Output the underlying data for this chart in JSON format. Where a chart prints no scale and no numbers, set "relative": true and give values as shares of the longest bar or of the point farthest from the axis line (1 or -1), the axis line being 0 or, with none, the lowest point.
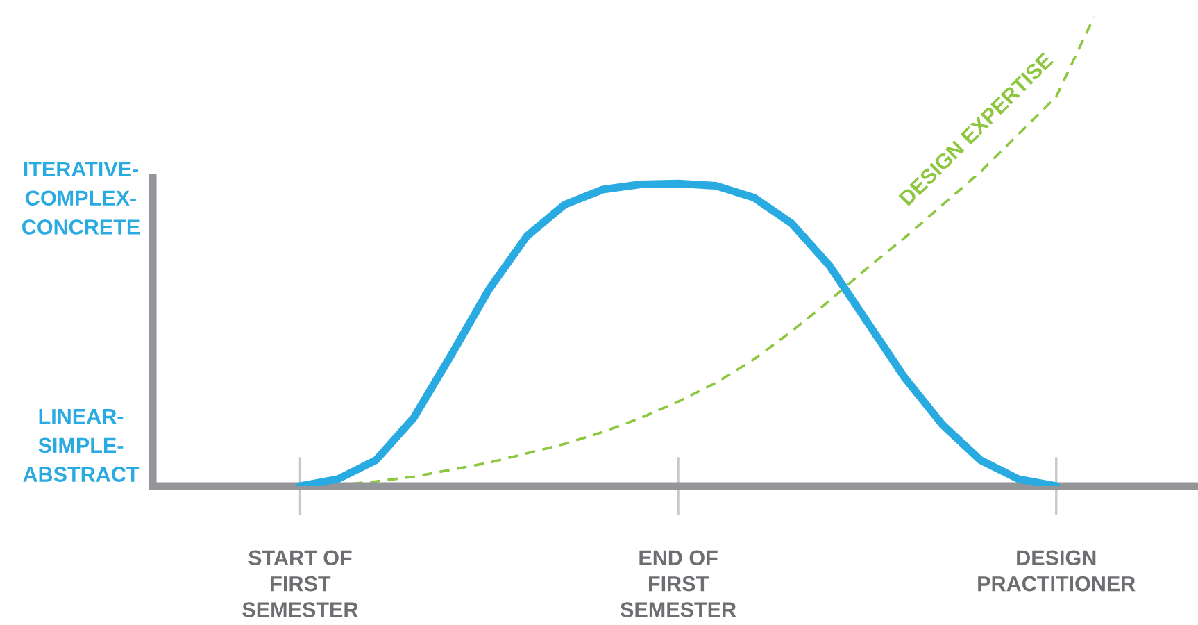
{
  "chart_data": {
    "type": "line",
    "relative": true,
    "categories": [
      "START OF\nFIRST\nSEMESTER",
      null,
      null,
      null,
      null,
      null,
      null,
      null,
      null,
      null,
      "END OF\nFIRST\nSEMESTER",
      null,
      null,
      null,
      null,
      null,
      null,
      null,
      null,
      null,
      "DESIGN\nPRACTITIONER",
      null
    ],
    "annotations": [
      "ITERATIVE-\nCOMPLEX-\nCONCRETE",
      "LINEAR-\nSIMPLE-\nABSTRACT"
    ],
    "grid": false,
    "legend": false,
    "marker": "none",
    "series": [
      {
        "color": "#29abe2",
        "line_style": "solid",
        "values": [
          0,
          0.015,
          0.055,
          0.145,
          0.28,
          0.42,
          0.533,
          0.6,
          0.632,
          0.643,
          0.645,
          0.64,
          0.615,
          0.56,
          0.47,
          0.35,
          0.23,
          0.13,
          0.055,
          0.015,
          0,
          null
        ]
      },
      {
        "name": "DESIGN EXPERTISE",
        "color": "#8dc63f",
        "line_style": "dashed",
        "values": [
          0,
          0.002,
          0.01,
          0.02,
          0.035,
          0.05,
          0.07,
          0.09,
          0.115,
          0.145,
          0.18,
          0.22,
          0.27,
          0.33,
          0.395,
          0.465,
          0.53,
          0.6,
          0.67,
          0.75,
          0.83,
          1
        ]
      }
    ]
  }
}
